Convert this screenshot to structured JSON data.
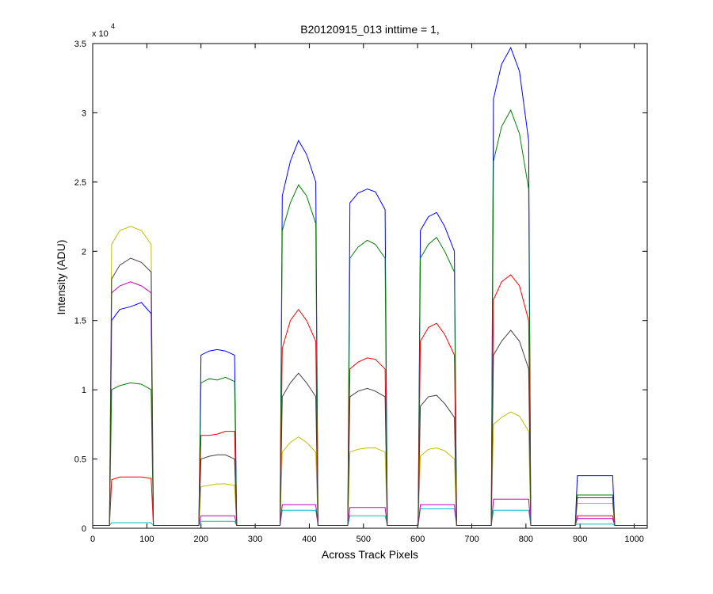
{
  "chart_data": {
    "type": "line",
    "title": "B20120915_013 inttime = 1,",
    "x_label": "Across Track Pixels",
    "y_label": "Intensity (ADU)",
    "y_exponent_base": "x 10",
    "y_exponent": "4",
    "x": [
      0,
      31,
      35,
      50,
      70,
      90,
      108,
      112,
      196,
      200,
      215,
      230,
      245,
      262,
      266,
      346,
      350,
      365,
      380,
      395,
      412,
      416,
      471,
      475,
      490,
      507,
      522,
      540,
      544,
      601,
      605,
      620,
      635,
      650,
      668,
      672,
      736,
      740,
      755,
      772,
      788,
      805,
      809,
      891,
      895,
      910,
      927,
      943,
      960,
      964,
      1024
    ],
    "series": [
      {
        "color": "#0000ff",
        "values": [
          200,
          200,
          15000,
          15800,
          16000,
          16300,
          15500,
          200,
          200,
          12500,
          12800,
          12900,
          12800,
          12500,
          200,
          200,
          24000,
          26500,
          28000,
          27000,
          25000,
          200,
          200,
          23500,
          24200,
          24500,
          24300,
          23000,
          200,
          200,
          21500,
          22500,
          22800,
          21800,
          20000,
          200,
          200,
          31000,
          33500,
          34700,
          33000,
          28000,
          200,
          200,
          3800,
          3800,
          3800,
          3800,
          3800,
          200,
          200
        ]
      },
      {
        "color": "#008000",
        "values": [
          200,
          200,
          10000,
          10300,
          10500,
          10400,
          10000,
          200,
          200,
          10500,
          10800,
          10700,
          10900,
          10600,
          200,
          200,
          21500,
          23500,
          24800,
          24000,
          22000,
          200,
          200,
          19500,
          20300,
          20800,
          20500,
          19500,
          200,
          200,
          19500,
          20500,
          21000,
          20000,
          18500,
          200,
          200,
          26500,
          29000,
          30200,
          28500,
          24500,
          200,
          200,
          2400,
          2400,
          2400,
          2400,
          2400,
          200,
          200
        ]
      },
      {
        "color": "#ff0000",
        "values": [
          200,
          200,
          3500,
          3700,
          3700,
          3700,
          3600,
          200,
          200,
          6700,
          6700,
          6800,
          7000,
          7000,
          200,
          200,
          13000,
          15000,
          15800,
          15000,
          13500,
          200,
          200,
          11500,
          12000,
          12300,
          12200,
          11500,
          200,
          200,
          13500,
          14500,
          14800,
          14000,
          12500,
          200,
          200,
          16500,
          17800,
          18300,
          17500,
          15000,
          200,
          200,
          900,
          900,
          900,
          900,
          900,
          200,
          200
        ]
      },
      {
        "color": "#00bfbf",
        "values": [
          200,
          200,
          400,
          400,
          400,
          400,
          400,
          200,
          200,
          500,
          500,
          500,
          500,
          500,
          200,
          200,
          1300,
          1300,
          1300,
          1300,
          1300,
          200,
          200,
          900,
          900,
          900,
          900,
          900,
          200,
          200,
          1400,
          1400,
          1400,
          1400,
          1400,
          200,
          200,
          1300,
          1300,
          1300,
          1300,
          1300,
          200,
          200,
          300,
          300,
          300,
          300,
          300,
          200,
          200
        ]
      },
      {
        "color": "#bf00bf",
        "values": [
          200,
          200,
          17000,
          17500,
          17800,
          17500,
          17000,
          200,
          200,
          900,
          900,
          900,
          900,
          900,
          200,
          200,
          1700,
          1700,
          1700,
          1700,
          1700,
          200,
          200,
          1500,
          1500,
          1500,
          1500,
          1500,
          200,
          200,
          1700,
          1700,
          1700,
          1700,
          1700,
          200,
          200,
          2100,
          2100,
          2100,
          2100,
          2100,
          200,
          200,
          700,
          700,
          700,
          700,
          700,
          200,
          200
        ]
      },
      {
        "color": "#bfbf00",
        "values": [
          200,
          200,
          20500,
          21500,
          21800,
          21500,
          20500,
          200,
          200,
          3000,
          3100,
          3200,
          3200,
          3100,
          200,
          200,
          5500,
          6200,
          6600,
          6200,
          5500,
          200,
          200,
          5500,
          5700,
          5800,
          5800,
          5500,
          200,
          200,
          5200,
          5700,
          5800,
          5600,
          5000,
          200,
          200,
          7500,
          8000,
          8400,
          8100,
          7000,
          200,
          200,
          1800,
          1800,
          1800,
          1800,
          1800,
          200,
          200
        ]
      },
      {
        "color": "#404040",
        "values": [
          200,
          200,
          18000,
          19000,
          19500,
          19200,
          18500,
          200,
          200,
          5000,
          5200,
          5300,
          5300,
          5000,
          200,
          200,
          9500,
          10500,
          11200,
          10500,
          9500,
          200,
          200,
          9500,
          9900,
          10100,
          9900,
          9500,
          200,
          200,
          8800,
          9500,
          9600,
          9000,
          8000,
          200,
          200,
          12500,
          13500,
          14300,
          13500,
          11500,
          200,
          200,
          2200,
          2200,
          2200,
          2200,
          2200,
          200,
          200
        ]
      }
    ],
    "xlim": [
      0,
      1024
    ],
    "xticks": [
      0,
      100,
      200,
      300,
      400,
      500,
      600,
      700,
      800,
      900,
      1000
    ],
    "ylim": [
      0,
      35000
    ],
    "yticks": [
      {
        "value": 0,
        "label": "0"
      },
      {
        "value": 5000,
        "label": "0.5"
      },
      {
        "value": 10000,
        "label": "1"
      },
      {
        "value": 15000,
        "label": "1.5"
      },
      {
        "value": 20000,
        "label": "2"
      },
      {
        "value": 25000,
        "label": "2.5"
      },
      {
        "value": 30000,
        "label": "3"
      },
      {
        "value": 35000,
        "label": "3.5"
      }
    ]
  }
}
